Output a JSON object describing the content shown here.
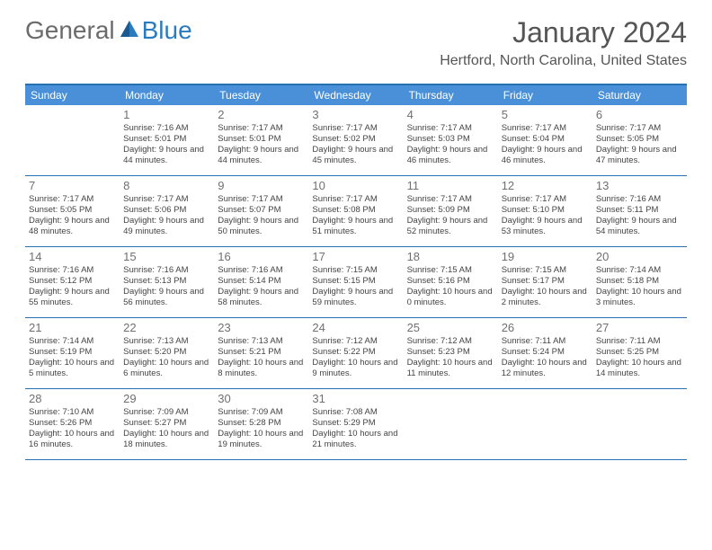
{
  "logo": {
    "text_general": "General",
    "text_blue": "Blue"
  },
  "title": {
    "month": "January 2024",
    "location": "Hertford, North Carolina, United States"
  },
  "colors": {
    "header_bg": "#4a90d9",
    "border": "#2671b5",
    "logo_gray": "#6b6b6b",
    "logo_blue": "#2b7bbf",
    "title_color": "#555555",
    "daynum_color": "#707070",
    "text_color": "#444444",
    "background": "#ffffff"
  },
  "day_headers": [
    "Sunday",
    "Monday",
    "Tuesday",
    "Wednesday",
    "Thursday",
    "Friday",
    "Saturday"
  ],
  "weeks": [
    [
      {
        "num": "",
        "sunrise": "",
        "sunset": "",
        "daylight": ""
      },
      {
        "num": "1",
        "sunrise": "Sunrise: 7:16 AM",
        "sunset": "Sunset: 5:01 PM",
        "daylight": "Daylight: 9 hours and 44 minutes."
      },
      {
        "num": "2",
        "sunrise": "Sunrise: 7:17 AM",
        "sunset": "Sunset: 5:01 PM",
        "daylight": "Daylight: 9 hours and 44 minutes."
      },
      {
        "num": "3",
        "sunrise": "Sunrise: 7:17 AM",
        "sunset": "Sunset: 5:02 PM",
        "daylight": "Daylight: 9 hours and 45 minutes."
      },
      {
        "num": "4",
        "sunrise": "Sunrise: 7:17 AM",
        "sunset": "Sunset: 5:03 PM",
        "daylight": "Daylight: 9 hours and 46 minutes."
      },
      {
        "num": "5",
        "sunrise": "Sunrise: 7:17 AM",
        "sunset": "Sunset: 5:04 PM",
        "daylight": "Daylight: 9 hours and 46 minutes."
      },
      {
        "num": "6",
        "sunrise": "Sunrise: 7:17 AM",
        "sunset": "Sunset: 5:05 PM",
        "daylight": "Daylight: 9 hours and 47 minutes."
      }
    ],
    [
      {
        "num": "7",
        "sunrise": "Sunrise: 7:17 AM",
        "sunset": "Sunset: 5:05 PM",
        "daylight": "Daylight: 9 hours and 48 minutes."
      },
      {
        "num": "8",
        "sunrise": "Sunrise: 7:17 AM",
        "sunset": "Sunset: 5:06 PM",
        "daylight": "Daylight: 9 hours and 49 minutes."
      },
      {
        "num": "9",
        "sunrise": "Sunrise: 7:17 AM",
        "sunset": "Sunset: 5:07 PM",
        "daylight": "Daylight: 9 hours and 50 minutes."
      },
      {
        "num": "10",
        "sunrise": "Sunrise: 7:17 AM",
        "sunset": "Sunset: 5:08 PM",
        "daylight": "Daylight: 9 hours and 51 minutes."
      },
      {
        "num": "11",
        "sunrise": "Sunrise: 7:17 AM",
        "sunset": "Sunset: 5:09 PM",
        "daylight": "Daylight: 9 hours and 52 minutes."
      },
      {
        "num": "12",
        "sunrise": "Sunrise: 7:17 AM",
        "sunset": "Sunset: 5:10 PM",
        "daylight": "Daylight: 9 hours and 53 minutes."
      },
      {
        "num": "13",
        "sunrise": "Sunrise: 7:16 AM",
        "sunset": "Sunset: 5:11 PM",
        "daylight": "Daylight: 9 hours and 54 minutes."
      }
    ],
    [
      {
        "num": "14",
        "sunrise": "Sunrise: 7:16 AM",
        "sunset": "Sunset: 5:12 PM",
        "daylight": "Daylight: 9 hours and 55 minutes."
      },
      {
        "num": "15",
        "sunrise": "Sunrise: 7:16 AM",
        "sunset": "Sunset: 5:13 PM",
        "daylight": "Daylight: 9 hours and 56 minutes."
      },
      {
        "num": "16",
        "sunrise": "Sunrise: 7:16 AM",
        "sunset": "Sunset: 5:14 PM",
        "daylight": "Daylight: 9 hours and 58 minutes."
      },
      {
        "num": "17",
        "sunrise": "Sunrise: 7:15 AM",
        "sunset": "Sunset: 5:15 PM",
        "daylight": "Daylight: 9 hours and 59 minutes."
      },
      {
        "num": "18",
        "sunrise": "Sunrise: 7:15 AM",
        "sunset": "Sunset: 5:16 PM",
        "daylight": "Daylight: 10 hours and 0 minutes."
      },
      {
        "num": "19",
        "sunrise": "Sunrise: 7:15 AM",
        "sunset": "Sunset: 5:17 PM",
        "daylight": "Daylight: 10 hours and 2 minutes."
      },
      {
        "num": "20",
        "sunrise": "Sunrise: 7:14 AM",
        "sunset": "Sunset: 5:18 PM",
        "daylight": "Daylight: 10 hours and 3 minutes."
      }
    ],
    [
      {
        "num": "21",
        "sunrise": "Sunrise: 7:14 AM",
        "sunset": "Sunset: 5:19 PM",
        "daylight": "Daylight: 10 hours and 5 minutes."
      },
      {
        "num": "22",
        "sunrise": "Sunrise: 7:13 AM",
        "sunset": "Sunset: 5:20 PM",
        "daylight": "Daylight: 10 hours and 6 minutes."
      },
      {
        "num": "23",
        "sunrise": "Sunrise: 7:13 AM",
        "sunset": "Sunset: 5:21 PM",
        "daylight": "Daylight: 10 hours and 8 minutes."
      },
      {
        "num": "24",
        "sunrise": "Sunrise: 7:12 AM",
        "sunset": "Sunset: 5:22 PM",
        "daylight": "Daylight: 10 hours and 9 minutes."
      },
      {
        "num": "25",
        "sunrise": "Sunrise: 7:12 AM",
        "sunset": "Sunset: 5:23 PM",
        "daylight": "Daylight: 10 hours and 11 minutes."
      },
      {
        "num": "26",
        "sunrise": "Sunrise: 7:11 AM",
        "sunset": "Sunset: 5:24 PM",
        "daylight": "Daylight: 10 hours and 12 minutes."
      },
      {
        "num": "27",
        "sunrise": "Sunrise: 7:11 AM",
        "sunset": "Sunset: 5:25 PM",
        "daylight": "Daylight: 10 hours and 14 minutes."
      }
    ],
    [
      {
        "num": "28",
        "sunrise": "Sunrise: 7:10 AM",
        "sunset": "Sunset: 5:26 PM",
        "daylight": "Daylight: 10 hours and 16 minutes."
      },
      {
        "num": "29",
        "sunrise": "Sunrise: 7:09 AM",
        "sunset": "Sunset: 5:27 PM",
        "daylight": "Daylight: 10 hours and 18 minutes."
      },
      {
        "num": "30",
        "sunrise": "Sunrise: 7:09 AM",
        "sunset": "Sunset: 5:28 PM",
        "daylight": "Daylight: 10 hours and 19 minutes."
      },
      {
        "num": "31",
        "sunrise": "Sunrise: 7:08 AM",
        "sunset": "Sunset: 5:29 PM",
        "daylight": "Daylight: 10 hours and 21 minutes."
      },
      {
        "num": "",
        "sunrise": "",
        "sunset": "",
        "daylight": ""
      },
      {
        "num": "",
        "sunrise": "",
        "sunset": "",
        "daylight": ""
      },
      {
        "num": "",
        "sunrise": "",
        "sunset": "",
        "daylight": ""
      }
    ]
  ]
}
